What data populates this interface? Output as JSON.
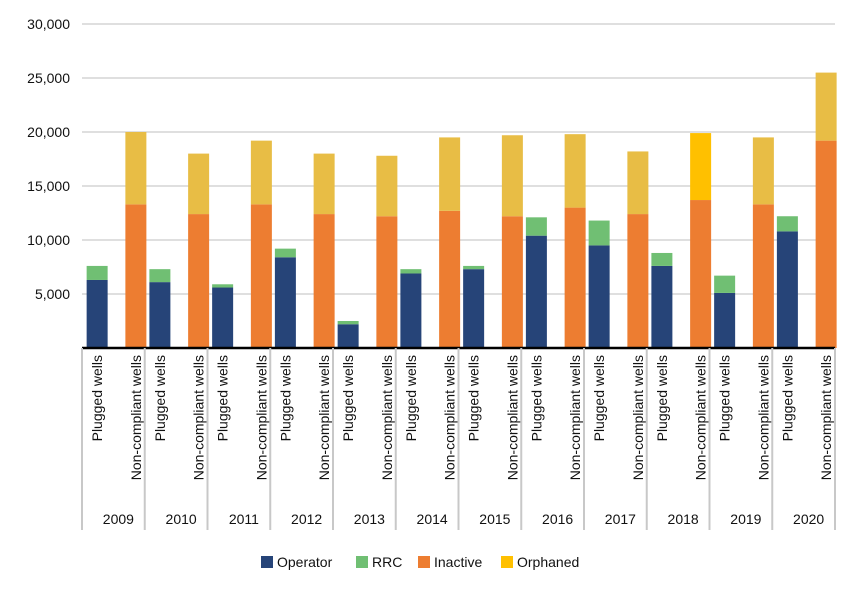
{
  "chart_data": {
    "type": "bar",
    "stacked": true,
    "years": [
      "2009",
      "2010",
      "2011",
      "2012",
      "2013",
      "2014",
      "2015",
      "2016",
      "2017",
      "2018",
      "2019",
      "2020"
    ],
    "categories": [
      "Plugged wells",
      "Non-compliant wells"
    ],
    "series": [
      {
        "name": "Operator",
        "color": "#264478",
        "plugged": [
          6300,
          6100,
          5600,
          8400,
          2200,
          6900,
          7300,
          10400,
          9500,
          7600,
          5100,
          10800
        ]
      },
      {
        "name": "RRC",
        "color": "#70bf73",
        "plugged": [
          1300,
          1200,
          300,
          800,
          300,
          400,
          300,
          1700,
          2300,
          1200,
          1600,
          1400
        ]
      },
      {
        "name": "Inactive",
        "color": "#ed7d31",
        "noncompliant": [
          13300,
          12400,
          13300,
          12400,
          12200,
          12700,
          12200,
          13000,
          12400,
          13700,
          13300,
          19200
        ]
      },
      {
        "name": "Orphaned",
        "colors": [
          "#e8bd45",
          "#e8bd45",
          "#e8bd45",
          "#e8bd45",
          "#e8bd45",
          "#e8bd45",
          "#e8bd45",
          "#e8bd45",
          "#e8bd45",
          "#ffc000",
          "#e8bd45",
          "#e8bd45"
        ],
        "noncompliant": [
          6700,
          5600,
          5900,
          5600,
          5600,
          6800,
          7500,
          6800,
          5800,
          6200,
          6200,
          6300
        ]
      }
    ],
    "y_ticks": [
      "5,000",
      "10,000",
      "15,000",
      "20,000",
      "25,000",
      "30,000"
    ],
    "ylim": [
      0,
      30000
    ],
    "grid": true,
    "legend_position": "bottom"
  }
}
